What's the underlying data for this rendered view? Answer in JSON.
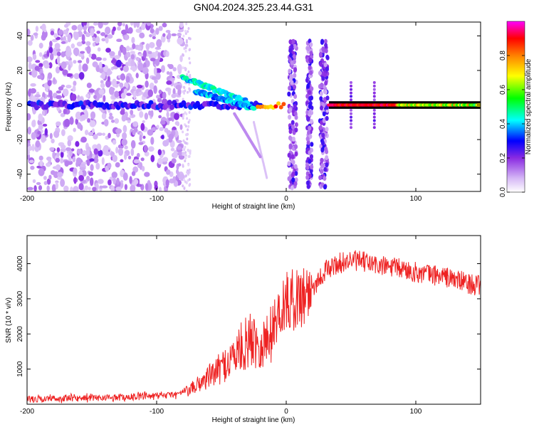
{
  "title": "GN04.2024.325.23.44.G31",
  "chart_data": [
    {
      "type": "heatmap",
      "xlabel": "Height of straight line (km)",
      "ylabel": "Frequency (Hz)",
      "xlim": [
        -200,
        150
      ],
      "ylim": [
        -50,
        48
      ],
      "xticks": [
        -200,
        -100,
        0,
        100
      ],
      "yticks": [
        -40,
        -20,
        0,
        20,
        40
      ],
      "colorbar": {
        "label": "Normalized spectral amplitude",
        "range": [
          0,
          1
        ],
        "ticks": [
          "0.0",
          "0.2",
          "0.4",
          "0.6",
          "0.8"
        ]
      },
      "colormap": [
        "#ffffff",
        "#8a2be2",
        "#0000ff",
        "#00ffff",
        "#00ff00",
        "#ffff00",
        "#ff7f00",
        "#ff0000",
        "#ff00ff"
      ],
      "features": [
        {
          "name": "baseline",
          "x": [
            -200,
            -100
          ],
          "y": 0,
          "amplitude": 0.25
        },
        {
          "name": "arc_1",
          "x": [
            -80,
            -30
          ],
          "y": [
            16,
            2
          ],
          "amplitude": 0.35
        },
        {
          "name": "arc_2",
          "x": [
            -70,
            -25
          ],
          "y": [
            8,
            -2
          ],
          "amplitude": 0.3
        },
        {
          "name": "tone",
          "x": [
            33,
            150
          ],
          "y": 0,
          "amplitude": 0.9
        }
      ]
    },
    {
      "type": "line",
      "xlabel": "Height of straight line (km)",
      "ylabel": "SNR (10 * v/v)",
      "xlim": [
        -200,
        150
      ],
      "ylim": [
        0,
        4800
      ],
      "xticks": [
        -200,
        -100,
        0,
        100
      ],
      "yticks": [
        1000,
        2000,
        3000,
        4000
      ],
      "color": "#ee2222",
      "series": [
        {
          "x": [
            -200,
            -150,
            -100,
            -85,
            -75,
            -65,
            -55,
            -45,
            -35,
            -25,
            -20,
            -15,
            -10,
            -5,
            0,
            10,
            20,
            30,
            40,
            50,
            60,
            70,
            80,
            90,
            100,
            110,
            120,
            130,
            140,
            150
          ],
          "y": [
            150,
            180,
            230,
            280,
            380,
            650,
            900,
            1200,
            1600,
            1900,
            1700,
            1800,
            2200,
            2700,
            2900,
            3050,
            3300,
            3800,
            4000,
            4100,
            4050,
            3950,
            3900,
            3850,
            3750,
            3700,
            3650,
            3550,
            3450,
            3350
          ]
        }
      ]
    }
  ]
}
